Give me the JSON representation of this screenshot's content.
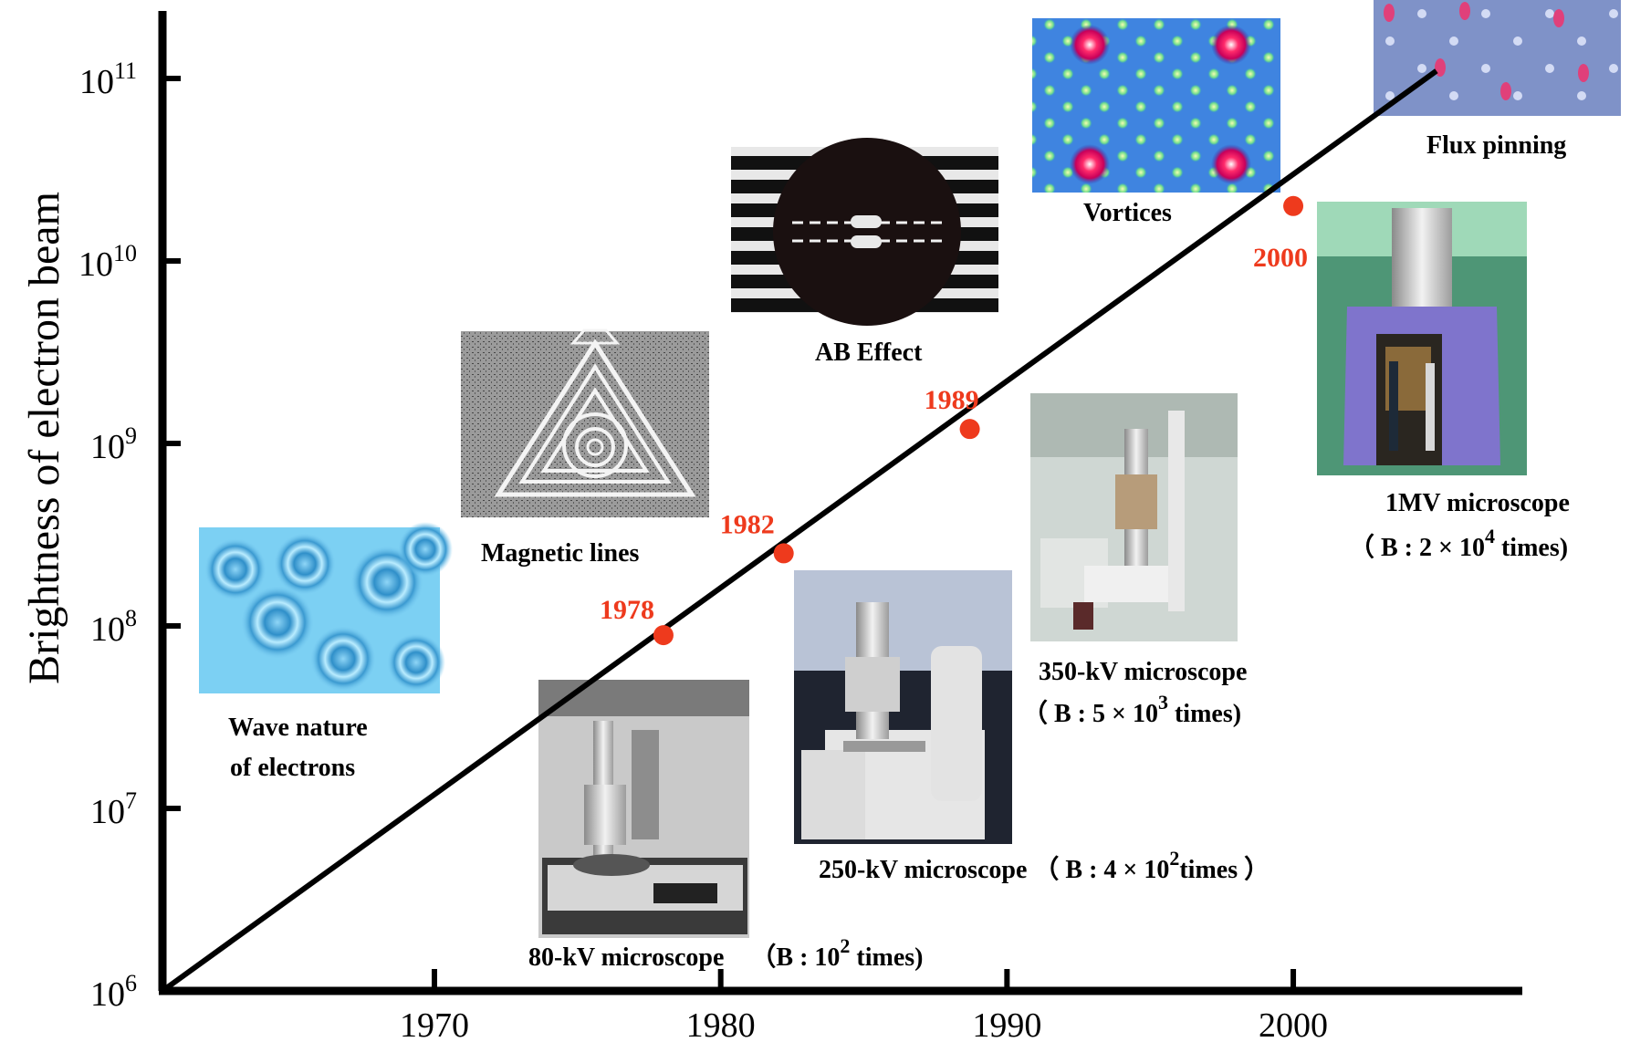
{
  "chart_data": {
    "type": "line",
    "ylabel": "Brightness of electron beam",
    "xlabel": "",
    "title": "",
    "yscale": "log",
    "xlim": [
      1960.5,
      2008
    ],
    "ylim": [
      1000000,
      150000000000
    ],
    "x_ticks": [
      1970,
      1980,
      1990,
      2000
    ],
    "y_ticks": [
      {
        "exp": 6,
        "value": 1000000
      },
      {
        "exp": 7,
        "value": 10000000
      },
      {
        "exp": 8,
        "value": 100000000
      },
      {
        "exp": 9,
        "value": 1000000000
      },
      {
        "exp": 10,
        "value": 10000000000
      },
      {
        "exp": 11,
        "value": 100000000000
      }
    ],
    "y_tick_base": "10",
    "series": [
      {
        "type": "trend",
        "points": [
          {
            "x": 1960.5,
            "y": 1000000
          },
          {
            "x": 2005,
            "y": 110000000000
          }
        ]
      }
    ],
    "milestones": [
      {
        "label": "1978",
        "x": 1978,
        "y": 89000000
      },
      {
        "label": "1982",
        "x": 1982.2,
        "y": 250000000
      },
      {
        "label": "1989",
        "x": 1988.7,
        "y": 1200000000
      },
      {
        "label": "2000",
        "x": 2000,
        "y": 20000000000
      }
    ],
    "marker_color": "#ee3a1d",
    "milestone_label_color": "#ee3a1d"
  },
  "annotations": {
    "wave": {
      "line1": "Wave nature",
      "line2": "of  electrons"
    },
    "magnetic": "Magnetic lines",
    "ab": "AB Effect",
    "vortices": "Vortices",
    "flux": "Flux pinning",
    "kv80": {
      "name": "80-kV microscope",
      "detail_pre": "（B  : 10",
      "sup": "2",
      "detail_post": " times)"
    },
    "kv250": {
      "name": "250-kV microscope",
      "detail_pre": "（ B  : 4 × 10",
      "sup": "2",
      "detail_post": "times   ）"
    },
    "kv350": {
      "name": "350-kV microscope",
      "detail_pre": "（ B  : 5 × 10",
      "sup": "3",
      "detail_post": "  times)"
    },
    "mv1": {
      "name": "1MV microscope",
      "detail_pre": "（ B  : 2 × 10",
      "sup": "4",
      "detail_post": " times)"
    }
  },
  "photos": [
    {
      "id": "wave-photo",
      "subject": "electron interference rings"
    },
    {
      "id": "magnetic-photo",
      "subject": "triangular magnetic flux lines"
    },
    {
      "id": "ab-photo",
      "subject": "AB effect interference fringes"
    },
    {
      "id": "vortices-photo",
      "subject": "vortex lattice"
    },
    {
      "id": "flux-photo",
      "subject": "flux pinning lattice"
    },
    {
      "id": "kv80-photo",
      "subject": "80-kV microscope"
    },
    {
      "id": "kv250-photo",
      "subject": "250-kV microscope"
    },
    {
      "id": "kv350-photo",
      "subject": "350-kV microscope"
    },
    {
      "id": "mv1-photo",
      "subject": "1MV microscope"
    }
  ]
}
